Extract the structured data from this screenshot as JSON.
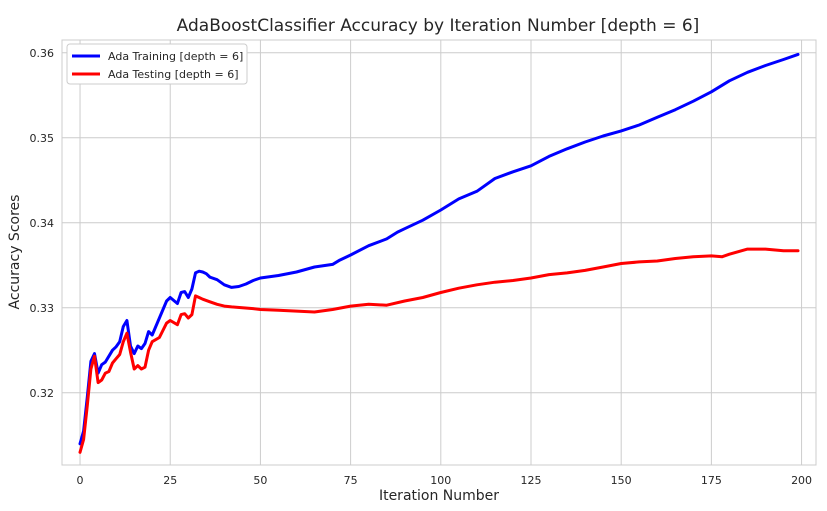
{
  "chart_data": {
    "type": "line",
    "title": "AdaBoostClassifier Accuracy by Iteration Number [depth = 6]",
    "xlabel": "Iteration Number",
    "ylabel": "Accuracy Scores",
    "xlim": [
      -5,
      204
    ],
    "ylim": [
      0.3115,
      0.3615
    ],
    "xticks": [
      0,
      25,
      50,
      75,
      100,
      125,
      150,
      175,
      200
    ],
    "xtick_labels": [
      "0",
      "25",
      "50",
      "75",
      "100",
      "125",
      "150",
      "175",
      "200"
    ],
    "yticks": [
      0.32,
      0.33,
      0.34,
      0.35,
      0.36
    ],
    "ytick_labels": [
      "0.32",
      "0.33",
      "0.34",
      "0.35",
      "0.36"
    ],
    "grid": true,
    "legend": "top-left",
    "series": [
      {
        "name": "Ada Training [depth = 6]",
        "color": "#0000ff",
        "points": [
          [
            0,
            0.314
          ],
          [
            1,
            0.3155
          ],
          [
            2,
            0.3195
          ],
          [
            3,
            0.3237
          ],
          [
            4,
            0.3246
          ],
          [
            5,
            0.3223
          ],
          [
            6,
            0.3233
          ],
          [
            7,
            0.3236
          ],
          [
            8,
            0.3243
          ],
          [
            9,
            0.325
          ],
          [
            10,
            0.3254
          ],
          [
            11,
            0.326
          ],
          [
            12,
            0.3278
          ],
          [
            13,
            0.3285
          ],
          [
            14,
            0.3255
          ],
          [
            15,
            0.3246
          ],
          [
            16,
            0.3255
          ],
          [
            17,
            0.3252
          ],
          [
            18,
            0.3258
          ],
          [
            19,
            0.3272
          ],
          [
            20,
            0.3268
          ],
          [
            22,
            0.3288
          ],
          [
            24,
            0.3308
          ],
          [
            25,
            0.3312
          ],
          [
            27,
            0.3305
          ],
          [
            28,
            0.3318
          ],
          [
            29,
            0.3319
          ],
          [
            30,
            0.3312
          ],
          [
            31,
            0.3322
          ],
          [
            32,
            0.3341
          ],
          [
            33,
            0.3343
          ],
          [
            34,
            0.3342
          ],
          [
            35,
            0.334
          ],
          [
            36,
            0.3336
          ],
          [
            38,
            0.3333
          ],
          [
            40,
            0.3327
          ],
          [
            42,
            0.3324
          ],
          [
            44,
            0.3325
          ],
          [
            46,
            0.3328
          ],
          [
            48,
            0.3332
          ],
          [
            50,
            0.3335
          ],
          [
            55,
            0.3338
          ],
          [
            60,
            0.3342
          ],
          [
            65,
            0.3348
          ],
          [
            70,
            0.3351
          ],
          [
            72,
            0.3356
          ],
          [
            75,
            0.3362
          ],
          [
            80,
            0.3373
          ],
          [
            85,
            0.3381
          ],
          [
            88,
            0.3389
          ],
          [
            90,
            0.3393
          ],
          [
            95,
            0.3403
          ],
          [
            100,
            0.3415
          ],
          [
            105,
            0.3428
          ],
          [
            110,
            0.3437
          ],
          [
            112,
            0.3443
          ],
          [
            115,
            0.3452
          ],
          [
            120,
            0.346
          ],
          [
            125,
            0.3467
          ],
          [
            130,
            0.3478
          ],
          [
            135,
            0.3487
          ],
          [
            140,
            0.3495
          ],
          [
            145,
            0.3502
          ],
          [
            150,
            0.3508
          ],
          [
            155,
            0.3515
          ],
          [
            160,
            0.3524
          ],
          [
            165,
            0.3533
          ],
          [
            170,
            0.3543
          ],
          [
            175,
            0.3554
          ],
          [
            180,
            0.3567
          ],
          [
            185,
            0.3577
          ],
          [
            190,
            0.3585
          ],
          [
            195,
            0.3592
          ],
          [
            199,
            0.3598
          ]
        ]
      },
      {
        "name": "Ada Testing [depth = 6]",
        "color": "#ff0000",
        "points": [
          [
            0,
            0.313
          ],
          [
            1,
            0.3145
          ],
          [
            2,
            0.3185
          ],
          [
            3,
            0.3228
          ],
          [
            4,
            0.3243
          ],
          [
            5,
            0.3212
          ],
          [
            6,
            0.3215
          ],
          [
            7,
            0.3223
          ],
          [
            8,
            0.3225
          ],
          [
            9,
            0.3235
          ],
          [
            10,
            0.324
          ],
          [
            11,
            0.3245
          ],
          [
            12,
            0.326
          ],
          [
            13,
            0.327
          ],
          [
            14,
            0.3248
          ],
          [
            15,
            0.3228
          ],
          [
            16,
            0.3232
          ],
          [
            17,
            0.3228
          ],
          [
            18,
            0.323
          ],
          [
            19,
            0.325
          ],
          [
            20,
            0.326
          ],
          [
            22,
            0.3265
          ],
          [
            24,
            0.3282
          ],
          [
            25,
            0.3285
          ],
          [
            27,
            0.328
          ],
          [
            28,
            0.3292
          ],
          [
            29,
            0.3293
          ],
          [
            30,
            0.3288
          ],
          [
            31,
            0.3292
          ],
          [
            32,
            0.3314
          ],
          [
            33,
            0.3312
          ],
          [
            34,
            0.331
          ],
          [
            36,
            0.3307
          ],
          [
            38,
            0.3304
          ],
          [
            40,
            0.3302
          ],
          [
            42,
            0.3301
          ],
          [
            45,
            0.33
          ],
          [
            48,
            0.3299
          ],
          [
            50,
            0.3298
          ],
          [
            55,
            0.3297
          ],
          [
            60,
            0.3296
          ],
          [
            65,
            0.3295
          ],
          [
            70,
            0.3298
          ],
          [
            75,
            0.3302
          ],
          [
            80,
            0.3304
          ],
          [
            85,
            0.3303
          ],
          [
            90,
            0.3308
          ],
          [
            95,
            0.3312
          ],
          [
            100,
            0.3318
          ],
          [
            105,
            0.3323
          ],
          [
            110,
            0.3327
          ],
          [
            115,
            0.333
          ],
          [
            120,
            0.3332
          ],
          [
            125,
            0.3335
          ],
          [
            130,
            0.3339
          ],
          [
            135,
            0.3341
          ],
          [
            140,
            0.3344
          ],
          [
            145,
            0.3348
          ],
          [
            150,
            0.3352
          ],
          [
            155,
            0.3354
          ],
          [
            160,
            0.3355
          ],
          [
            165,
            0.3358
          ],
          [
            170,
            0.336
          ],
          [
            175,
            0.3361
          ],
          [
            178,
            0.336
          ],
          [
            180,
            0.3363
          ],
          [
            185,
            0.3369
          ],
          [
            190,
            0.3369
          ],
          [
            195,
            0.3367
          ],
          [
            199,
            0.3367
          ]
        ]
      }
    ]
  }
}
